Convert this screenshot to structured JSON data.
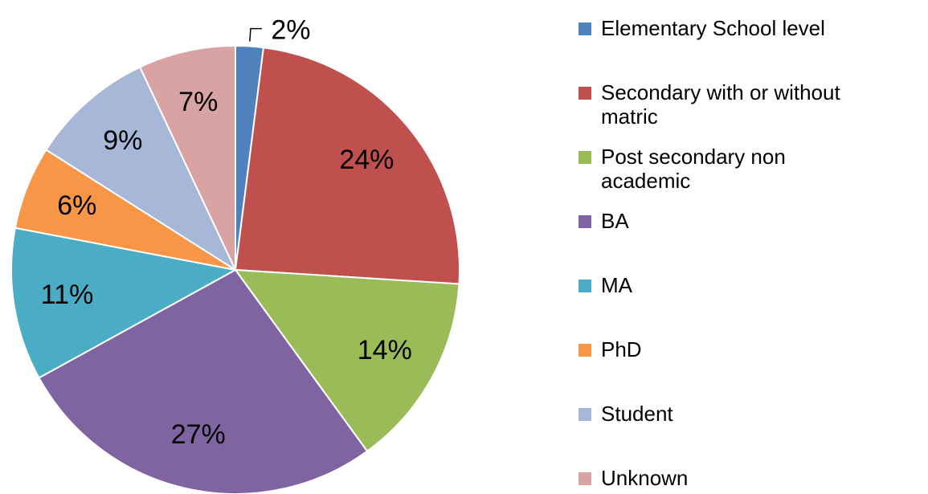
{
  "chart_data": {
    "type": "pie",
    "categories": [
      "Elementary School level",
      "Secondary with or without matric",
      "Post secondary non academic",
      "BA",
      "MA",
      "PhD",
      "Student",
      "Unknown"
    ],
    "values": [
      2,
      24,
      14,
      27,
      11,
      6,
      9,
      7
    ],
    "value_labels": [
      "2%",
      "24%",
      "14%",
      "27%",
      "11%",
      "6%",
      "9%",
      "7%"
    ],
    "colors": [
      "#4f81bd",
      "#c0504d",
      "#9bbb59",
      "#8064a2",
      "#4bacc6",
      "#f79646",
      "#a6b7d8",
      "#d9a3a3"
    ],
    "legend": "right"
  }
}
